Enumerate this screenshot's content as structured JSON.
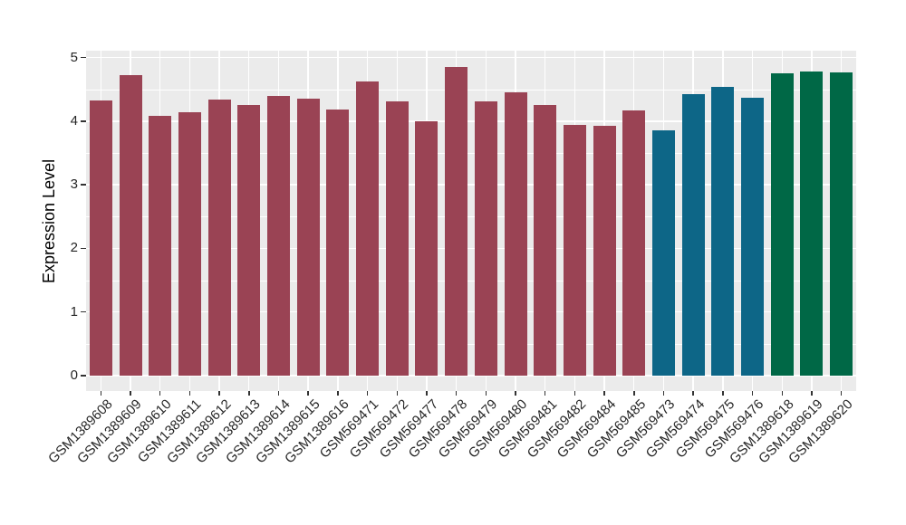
{
  "figure": {
    "background": "#ffffff",
    "panel_background": "#ebebeb",
    "gridline_color": "#ffffff",
    "tick_color": "#333333",
    "text_color": "#262626"
  },
  "chart_data": {
    "type": "bar",
    "title": "",
    "xlabel": "",
    "ylabel": "Expression Level",
    "ylim": [
      0,
      5
    ],
    "yticks": [
      0,
      1,
      2,
      3,
      4,
      5
    ],
    "yticks_minor": [
      0.5,
      1.5,
      2.5,
      3.5,
      4.5
    ],
    "grid": "on",
    "legend": "none",
    "categories": [
      "GSM1389608",
      "GSM1389609",
      "GSM1389610",
      "GSM1389611",
      "GSM1389612",
      "GSM1389613",
      "GSM1389614",
      "GSM1389615",
      "GSM1389616",
      "GSM569471",
      "GSM569472",
      "GSM569477",
      "GSM569478",
      "GSM569479",
      "GSM569480",
      "GSM569481",
      "GSM569482",
      "GSM569484",
      "GSM569485",
      "GSM569473",
      "GSM569474",
      "GSM569475",
      "GSM569476",
      "GSM1389618",
      "GSM1389619",
      "GSM1389620"
    ],
    "values": [
      4.33,
      4.72,
      4.08,
      4.14,
      4.34,
      4.26,
      4.39,
      4.36,
      4.18,
      4.63,
      4.31,
      4.0,
      4.85,
      4.31,
      4.45,
      4.25,
      3.94,
      3.92,
      4.17,
      3.85,
      4.43,
      4.54,
      4.37,
      4.75,
      4.78,
      4.77
    ],
    "bar_groups": [
      "maroon",
      "maroon",
      "maroon",
      "maroon",
      "maroon",
      "maroon",
      "maroon",
      "maroon",
      "maroon",
      "maroon",
      "maroon",
      "maroon",
      "maroon",
      "maroon",
      "maroon",
      "maroon",
      "maroon",
      "maroon",
      "maroon",
      "teal",
      "teal",
      "teal",
      "teal",
      "green",
      "green",
      "green"
    ],
    "group_colors": {
      "maroon": "#9a4354",
      "teal": "#0d6687",
      "green": "#006846"
    }
  }
}
